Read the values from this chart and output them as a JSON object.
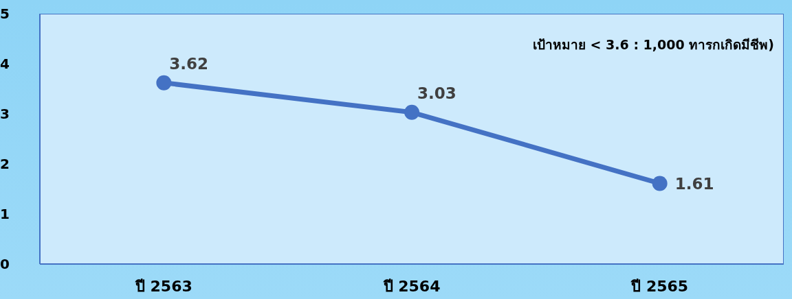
{
  "chart_data": {
    "type": "line",
    "categories": [
      "ปี 2563",
      "ปี 2564",
      "ปี 2565"
    ],
    "series": [
      {
        "color": "#4472c4",
        "values": [
          3.62,
          3.03,
          1.61
        ]
      }
    ],
    "ylim": [
      0,
      5
    ],
    "yticks": [
      0,
      1,
      2,
      3,
      4,
      5
    ],
    "marker": "circle",
    "line_style": "solid",
    "data_labels": true,
    "annotations": [
      "เป้าหมาย < 3.6 : 1,000 ทารกเกิดมีชีพ)"
    ]
  }
}
